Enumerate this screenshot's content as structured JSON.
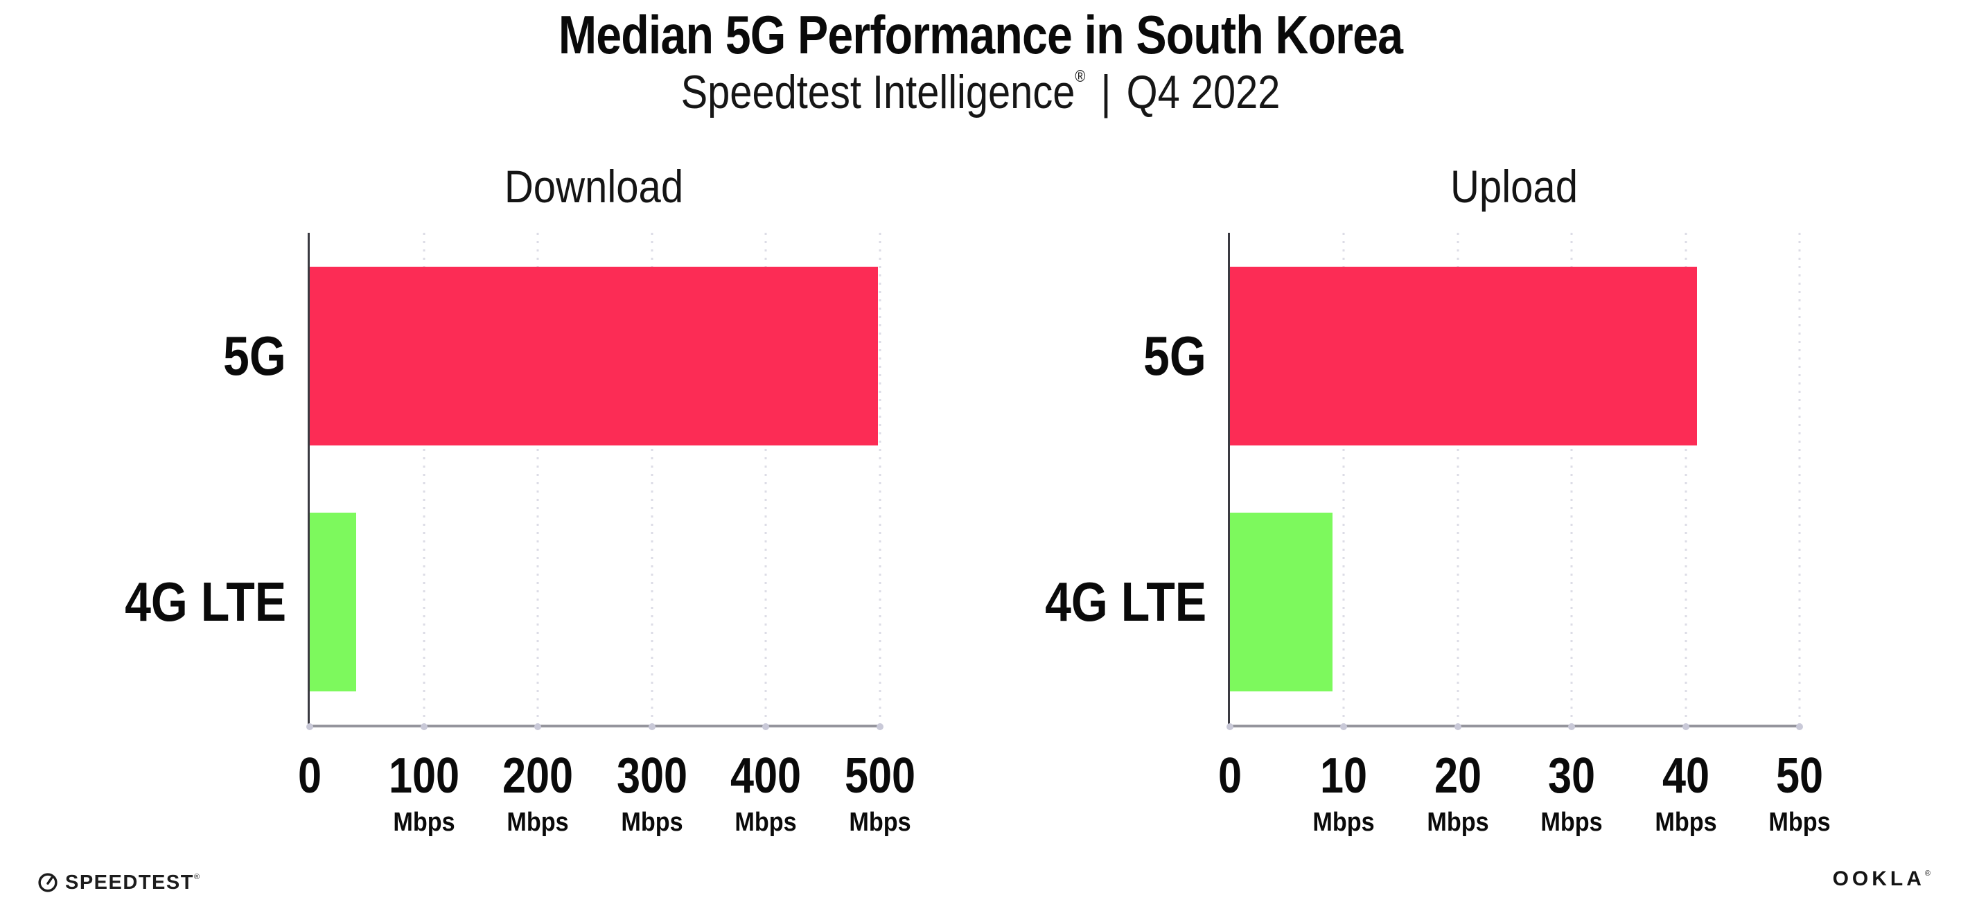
{
  "header": {
    "title": "Median 5G Performance in South Korea",
    "subtitle_brand": "Speedtest Intelligence",
    "subtitle_registered": "®",
    "subtitle_separator": "|",
    "subtitle_period": "Q4 2022"
  },
  "chart_data": [
    {
      "type": "bar",
      "orientation": "horizontal",
      "title": "Download",
      "categories": [
        "5G",
        "4G LTE"
      ],
      "values": [
        498,
        41
      ],
      "unit": "Mbps",
      "xlim": [
        0,
        500
      ],
      "xticks": [
        0,
        100,
        200,
        300,
        400,
        500
      ],
      "bar_colors": [
        "#FC2C55",
        "#7DF95D"
      ],
      "grid": "dotted vertical gridlines at each tick",
      "legend": "none"
    },
    {
      "type": "bar",
      "orientation": "horizontal",
      "title": "Upload",
      "categories": [
        "5G",
        "4G LTE"
      ],
      "values": [
        41,
        9
      ],
      "unit": "Mbps",
      "xlim": [
        0,
        50
      ],
      "xticks": [
        0,
        10,
        20,
        30,
        40,
        50
      ],
      "bar_colors": [
        "#FC2C55",
        "#7DF95D"
      ],
      "grid": "dotted vertical gridlines at each tick",
      "legend": "none"
    }
  ],
  "footer": {
    "speedtest_logo_text": "SPEEDTEST",
    "speedtest_registered": "®",
    "ookla_logo_text": "OOKLA",
    "ookla_registered": "®"
  },
  "colors": {
    "bar_5g": "#FC2C55",
    "bar_4g_lte": "#7DF95D",
    "y_axis": "#3A3A41",
    "baseline": "#94949C",
    "gridline": "#DCDCE6",
    "text": "#111111",
    "background": "#FFFFFF"
  }
}
